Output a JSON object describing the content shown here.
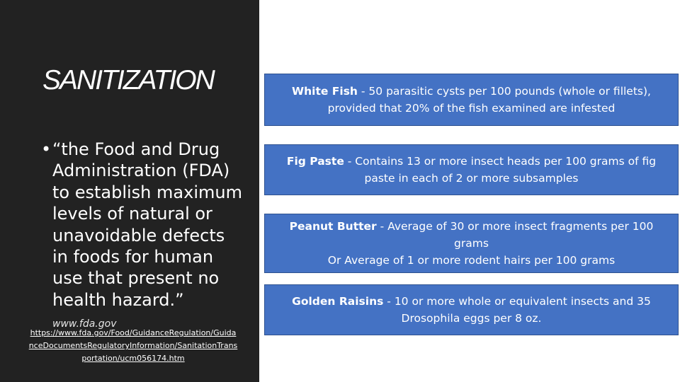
{
  "title": "SANITIZATION",
  "bullet": {
    "marker": "•",
    "quote": "“the Food and Drug Administration (FDA) to establish maximum levels of natural or unavoidable defects in foods for human use that present no health hazard.”",
    "source": "www.fda.gov"
  },
  "link": "https://www.fda.gov/Food/GuidanceRegulation/GuidanceDocumentsRegulatoryInformation/SanitationTransportation/ucm056174.htm",
  "boxes": [
    {
      "name": "White Fish",
      "sep": " - ",
      "lines": [
        "50 parasitic cysts per 100 pounds (whole or fillets), provided that 20% of the fish examined are infested"
      ]
    },
    {
      "name": "Fig Paste",
      "sep": " - ",
      "lines": [
        "Contains 13 or more insect heads per 100 grams of fig paste in each of 2 or more subsamples"
      ]
    },
    {
      "name": "Peanut Butter",
      "sep": " - ",
      "lines": [
        "Average of 30 or more insect fragments per 100 grams",
        "Or Average of 1 or more rodent hairs per 100 grams"
      ]
    },
    {
      "name": "Golden Raisins",
      "sep": " - ",
      "lines": [
        "10 or more whole or equivalent insects and 35 Drosophila eggs per 8 oz."
      ]
    }
  ],
  "colors": {
    "left_panel": "#222222",
    "box_fill": "#4472c4",
    "box_border": "#2f528f",
    "text": "#ffffff"
  }
}
